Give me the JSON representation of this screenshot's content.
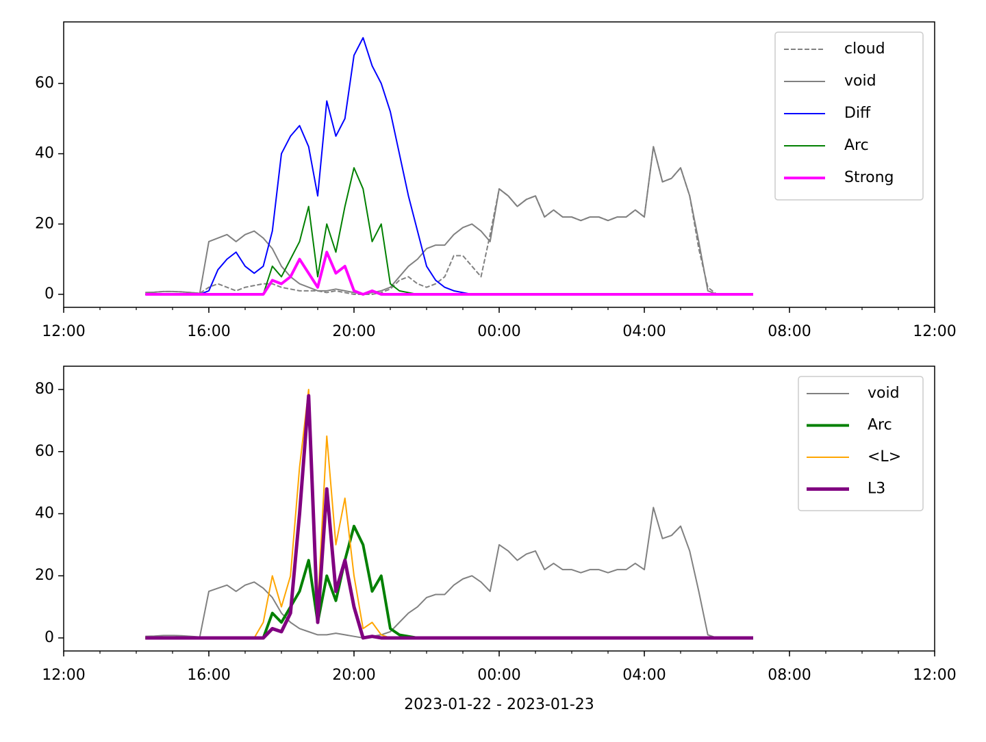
{
  "chart_data": [
    {
      "type": "line",
      "x": [
        "2023-01-22 14:15",
        "2023-01-22 14:30",
        "2023-01-22 14:45",
        "2023-01-22 15:00",
        "2023-01-22 15:15",
        "2023-01-22 15:30",
        "2023-01-22 15:45",
        "2023-01-22 16:00",
        "2023-01-22 16:15",
        "2023-01-22 16:30",
        "2023-01-22 16:45",
        "2023-01-22 17:00",
        "2023-01-22 17:15",
        "2023-01-22 17:30",
        "2023-01-22 17:45",
        "2023-01-22 18:00",
        "2023-01-22 18:15",
        "2023-01-22 18:30",
        "2023-01-22 18:45",
        "2023-01-22 19:00",
        "2023-01-22 19:15",
        "2023-01-22 19:30",
        "2023-01-22 19:45",
        "2023-01-22 20:00",
        "2023-01-22 20:15",
        "2023-01-22 20:30",
        "2023-01-22 20:45",
        "2023-01-22 21:00",
        "2023-01-22 21:15",
        "2023-01-22 21:30",
        "2023-01-22 21:45",
        "2023-01-22 22:00",
        "2023-01-22 22:15",
        "2023-01-22 22:30",
        "2023-01-22 22:45",
        "2023-01-22 23:00",
        "2023-01-22 23:15",
        "2023-01-22 23:30",
        "2023-01-22 23:45",
        "2023-01-23 00:00",
        "2023-01-23 00:15",
        "2023-01-23 00:30",
        "2023-01-23 00:45",
        "2023-01-23 01:00",
        "2023-01-23 01:15",
        "2023-01-23 01:30",
        "2023-01-23 01:45",
        "2023-01-23 02:00",
        "2023-01-23 02:15",
        "2023-01-23 02:30",
        "2023-01-23 02:45",
        "2023-01-23 03:00",
        "2023-01-23 03:15",
        "2023-01-23 03:30",
        "2023-01-23 03:45",
        "2023-01-23 04:00",
        "2023-01-23 04:15",
        "2023-01-23 04:30",
        "2023-01-23 04:45",
        "2023-01-23 05:00",
        "2023-01-23 05:15",
        "2023-01-23 05:30",
        "2023-01-23 05:45",
        "2023-01-23 06:00",
        "2023-01-23 06:15",
        "2023-01-23 06:30",
        "2023-01-23 06:45",
        "2023-01-23 07:00"
      ],
      "series": [
        {
          "name": "cloud",
          "color": "#808080",
          "linestyle": "dashed",
          "linewidth": 2,
          "values": [
            0.5,
            0.6,
            0.8,
            0.8,
            0.7,
            0.5,
            0.3,
            2,
            3,
            2,
            1,
            2,
            2.5,
            3,
            3,
            2,
            1.5,
            1,
            1,
            1,
            0.5,
            1,
            0.5,
            0,
            0,
            0,
            0.5,
            1.5,
            4,
            5,
            3,
            2,
            3,
            5,
            11,
            11,
            8,
            5,
            17,
            30,
            28,
            25,
            27,
            28,
            22,
            24,
            22,
            22,
            21,
            22,
            22,
            21,
            22,
            22,
            24,
            22,
            42,
            32,
            33,
            36,
            28,
            13,
            2,
            0,
            0,
            0,
            0,
            0
          ]
        },
        {
          "name": "void",
          "color": "#808080",
          "linestyle": "solid",
          "linewidth": 2,
          "values": [
            0.5,
            0.6,
            0.8,
            0.8,
            0.7,
            0.5,
            0.3,
            15,
            16,
            17,
            15,
            17,
            18,
            16,
            13,
            8,
            5,
            3,
            2,
            1,
            1,
            1.5,
            1,
            0.5,
            0,
            0.5,
            1,
            2,
            5,
            8,
            10,
            13,
            14,
            14,
            17,
            19,
            20,
            18,
            15,
            30,
            28,
            25,
            27,
            28,
            22,
            24,
            22,
            22,
            21,
            22,
            22,
            21,
            22,
            22,
            24,
            22,
            42,
            32,
            33,
            36,
            28,
            15,
            1,
            0,
            0,
            0,
            0,
            0
          ]
        },
        {
          "name": "Diff",
          "color": "#0000ff",
          "linestyle": "solid",
          "linewidth": 2,
          "values": [
            0,
            0,
            0,
            0,
            0,
            0,
            0,
            1,
            7,
            10,
            12,
            8,
            6,
            8,
            18,
            40,
            45,
            48,
            42,
            28,
            55,
            45,
            50,
            68,
            73,
            65,
            60,
            52,
            40,
            28,
            18,
            8,
            4,
            2,
            1,
            0.5,
            0,
            0,
            0,
            0,
            0,
            0,
            0,
            0,
            0,
            0,
            0,
            0,
            0,
            0,
            0,
            0,
            0,
            0,
            0,
            0,
            0,
            0,
            0,
            0,
            0,
            0,
            0,
            0,
            0,
            0,
            0,
            0
          ]
        },
        {
          "name": "Arc",
          "color": "#008000",
          "linestyle": "solid",
          "linewidth": 2,
          "values": [
            0,
            0,
            0,
            0,
            0,
            0,
            0,
            0,
            0,
            0,
            0,
            0,
            0,
            0,
            8,
            5,
            10,
            15,
            25,
            5,
            20,
            12,
            25,
            36,
            30,
            15,
            20,
            3,
            1,
            0.5,
            0,
            0,
            0,
            0,
            0,
            0,
            0,
            0,
            0,
            0,
            0,
            0,
            0,
            0,
            0,
            0,
            0,
            0,
            0,
            0,
            0,
            0,
            0,
            0,
            0,
            0,
            0,
            0,
            0,
            0,
            0,
            0,
            0,
            0,
            0,
            0,
            0,
            0
          ]
        },
        {
          "name": "Strong",
          "color": "#ff00ff",
          "linestyle": "solid",
          "linewidth": 4,
          "values": [
            0,
            0,
            0,
            0,
            0,
            0,
            0,
            0,
            0,
            0,
            0,
            0,
            0,
            0,
            4,
            3,
            5,
            10,
            6,
            2,
            12,
            6,
            8,
            1,
            0,
            1,
            0,
            0,
            0,
            0,
            0,
            0,
            0,
            0,
            0,
            0,
            0,
            0,
            0,
            0,
            0,
            0,
            0,
            0,
            0,
            0,
            0,
            0,
            0,
            0,
            0,
            0,
            0,
            0,
            0,
            0,
            0,
            0,
            0,
            0,
            0,
            0,
            0,
            0,
            0,
            0,
            0,
            0
          ]
        }
      ],
      "xlim": [
        "2023-01-22 12:00",
        "2023-01-23 12:00"
      ],
      "xticks": [
        {
          "value": "2023-01-22 12:00",
          "label": "12:00"
        },
        {
          "value": "2023-01-22 16:00",
          "label": "16:00"
        },
        {
          "value": "2023-01-22 20:00",
          "label": "20:00"
        },
        {
          "value": "2023-01-23 00:00",
          "label": "00:00"
        },
        {
          "value": "2023-01-23 04:00",
          "label": "04:00"
        },
        {
          "value": "2023-01-23 08:00",
          "label": "08:00"
        },
        {
          "value": "2023-01-23 12:00",
          "label": "12:00"
        }
      ],
      "ylim": [
        -3.7,
        77.5
      ],
      "yticks": [
        0,
        20,
        40,
        60
      ],
      "legend": "upper right"
    },
    {
      "type": "line",
      "x": [
        "2023-01-22 14:15",
        "2023-01-22 14:30",
        "2023-01-22 14:45",
        "2023-01-22 15:00",
        "2023-01-22 15:15",
        "2023-01-22 15:30",
        "2023-01-22 15:45",
        "2023-01-22 16:00",
        "2023-01-22 16:15",
        "2023-01-22 16:30",
        "2023-01-22 16:45",
        "2023-01-22 17:00",
        "2023-01-22 17:15",
        "2023-01-22 17:30",
        "2023-01-22 17:45",
        "2023-01-22 18:00",
        "2023-01-22 18:15",
        "2023-01-22 18:30",
        "2023-01-22 18:45",
        "2023-01-22 19:00",
        "2023-01-22 19:15",
        "2023-01-22 19:30",
        "2023-01-22 19:45",
        "2023-01-22 20:00",
        "2023-01-22 20:15",
        "2023-01-22 20:30",
        "2023-01-22 20:45",
        "2023-01-22 21:00",
        "2023-01-22 21:15",
        "2023-01-22 21:30",
        "2023-01-22 21:45",
        "2023-01-22 22:00",
        "2023-01-22 22:15",
        "2023-01-22 22:30",
        "2023-01-22 22:45",
        "2023-01-22 23:00",
        "2023-01-22 23:15",
        "2023-01-22 23:30",
        "2023-01-22 23:45",
        "2023-01-23 00:00",
        "2023-01-23 00:15",
        "2023-01-23 00:30",
        "2023-01-23 00:45",
        "2023-01-23 01:00",
        "2023-01-23 01:15",
        "2023-01-23 01:30",
        "2023-01-23 01:45",
        "2023-01-23 02:00",
        "2023-01-23 02:15",
        "2023-01-23 02:30",
        "2023-01-23 02:45",
        "2023-01-23 03:00",
        "2023-01-23 03:15",
        "2023-01-23 03:30",
        "2023-01-23 03:45",
        "2023-01-23 04:00",
        "2023-01-23 04:15",
        "2023-01-23 04:30",
        "2023-01-23 04:45",
        "2023-01-23 05:00",
        "2023-01-23 05:15",
        "2023-01-23 05:30",
        "2023-01-23 05:45",
        "2023-01-23 06:00",
        "2023-01-23 06:15",
        "2023-01-23 06:30",
        "2023-01-23 06:45",
        "2023-01-23 07:00"
      ],
      "series": [
        {
          "name": "void",
          "color": "#808080",
          "linestyle": "solid",
          "linewidth": 2,
          "values": [
            0.5,
            0.6,
            0.8,
            0.8,
            0.7,
            0.5,
            0.3,
            15,
            16,
            17,
            15,
            17,
            18,
            16,
            13,
            8,
            5,
            3,
            2,
            1,
            1,
            1.5,
            1,
            0.5,
            0,
            0.5,
            1,
            2,
            5,
            8,
            10,
            13,
            14,
            14,
            17,
            19,
            20,
            18,
            15,
            30,
            28,
            25,
            27,
            28,
            22,
            24,
            22,
            22,
            21,
            22,
            22,
            21,
            22,
            22,
            24,
            22,
            42,
            32,
            33,
            36,
            28,
            15,
            1,
            0,
            0,
            0,
            0,
            0
          ]
        },
        {
          "name": "Arc",
          "color": "#008000",
          "linestyle": "solid",
          "linewidth": 4,
          "values": [
            0,
            0,
            0,
            0,
            0,
            0,
            0,
            0,
            0,
            0,
            0,
            0,
            0,
            0,
            8,
            5,
            10,
            15,
            25,
            5,
            20,
            12,
            25,
            36,
            30,
            15,
            20,
            3,
            1,
            0.5,
            0,
            0,
            0,
            0,
            0,
            0,
            0,
            0,
            0,
            0,
            0,
            0,
            0,
            0,
            0,
            0,
            0,
            0,
            0,
            0,
            0,
            0,
            0,
            0,
            0,
            0,
            0,
            0,
            0,
            0,
            0,
            0,
            0,
            0,
            0,
            0,
            0,
            0
          ]
        },
        {
          "name": "<L>",
          "color": "#ffa500",
          "linestyle": "solid",
          "linewidth": 2,
          "values": [
            0,
            0,
            0,
            0,
            0,
            0,
            0,
            0,
            0,
            0,
            0,
            0,
            0,
            5,
            20,
            10,
            20,
            55,
            80,
            10,
            65,
            30,
            45,
            20,
            3,
            5,
            1,
            0,
            0,
            0,
            0,
            0,
            0,
            0,
            0,
            0,
            0,
            0,
            0,
            0,
            0,
            0,
            0,
            0,
            0,
            0,
            0,
            0,
            0,
            0,
            0,
            0,
            0,
            0,
            0,
            0,
            0,
            0,
            0,
            0,
            0,
            0,
            0,
            0,
            0,
            0,
            0,
            0
          ]
        },
        {
          "name": "L3",
          "color": "#800080",
          "linestyle": "solid",
          "linewidth": 5,
          "values": [
            0,
            0,
            0,
            0,
            0,
            0,
            0,
            0,
            0,
            0,
            0,
            0,
            0,
            0,
            3,
            2,
            8,
            40,
            78,
            5,
            48,
            15,
            25,
            10,
            0,
            0.5,
            0,
            0,
            0,
            0,
            0,
            0,
            0,
            0,
            0,
            0,
            0,
            0,
            0,
            0,
            0,
            0,
            0,
            0,
            0,
            0,
            0,
            0,
            0,
            0,
            0,
            0,
            0,
            0,
            0,
            0,
            0,
            0,
            0,
            0,
            0,
            0,
            0,
            0,
            0,
            0,
            0,
            0
          ]
        }
      ],
      "xlim": [
        "2023-01-22 12:00",
        "2023-01-23 12:00"
      ],
      "xticks": [
        {
          "value": "2023-01-22 12:00",
          "label": "12:00"
        },
        {
          "value": "2023-01-22 16:00",
          "label": "16:00"
        },
        {
          "value": "2023-01-22 20:00",
          "label": "20:00"
        },
        {
          "value": "2023-01-23 00:00",
          "label": "00:00"
        },
        {
          "value": "2023-01-23 04:00",
          "label": "04:00"
        },
        {
          "value": "2023-01-23 08:00",
          "label": "08:00"
        },
        {
          "value": "2023-01-23 12:00",
          "label": "12:00"
        }
      ],
      "ylim": [
        -4.2,
        87.5
      ],
      "yticks": [
        0,
        20,
        40,
        60,
        80
      ],
      "legend": "upper right",
      "xlabel": "2023-01-22 - 2023-01-23"
    }
  ]
}
